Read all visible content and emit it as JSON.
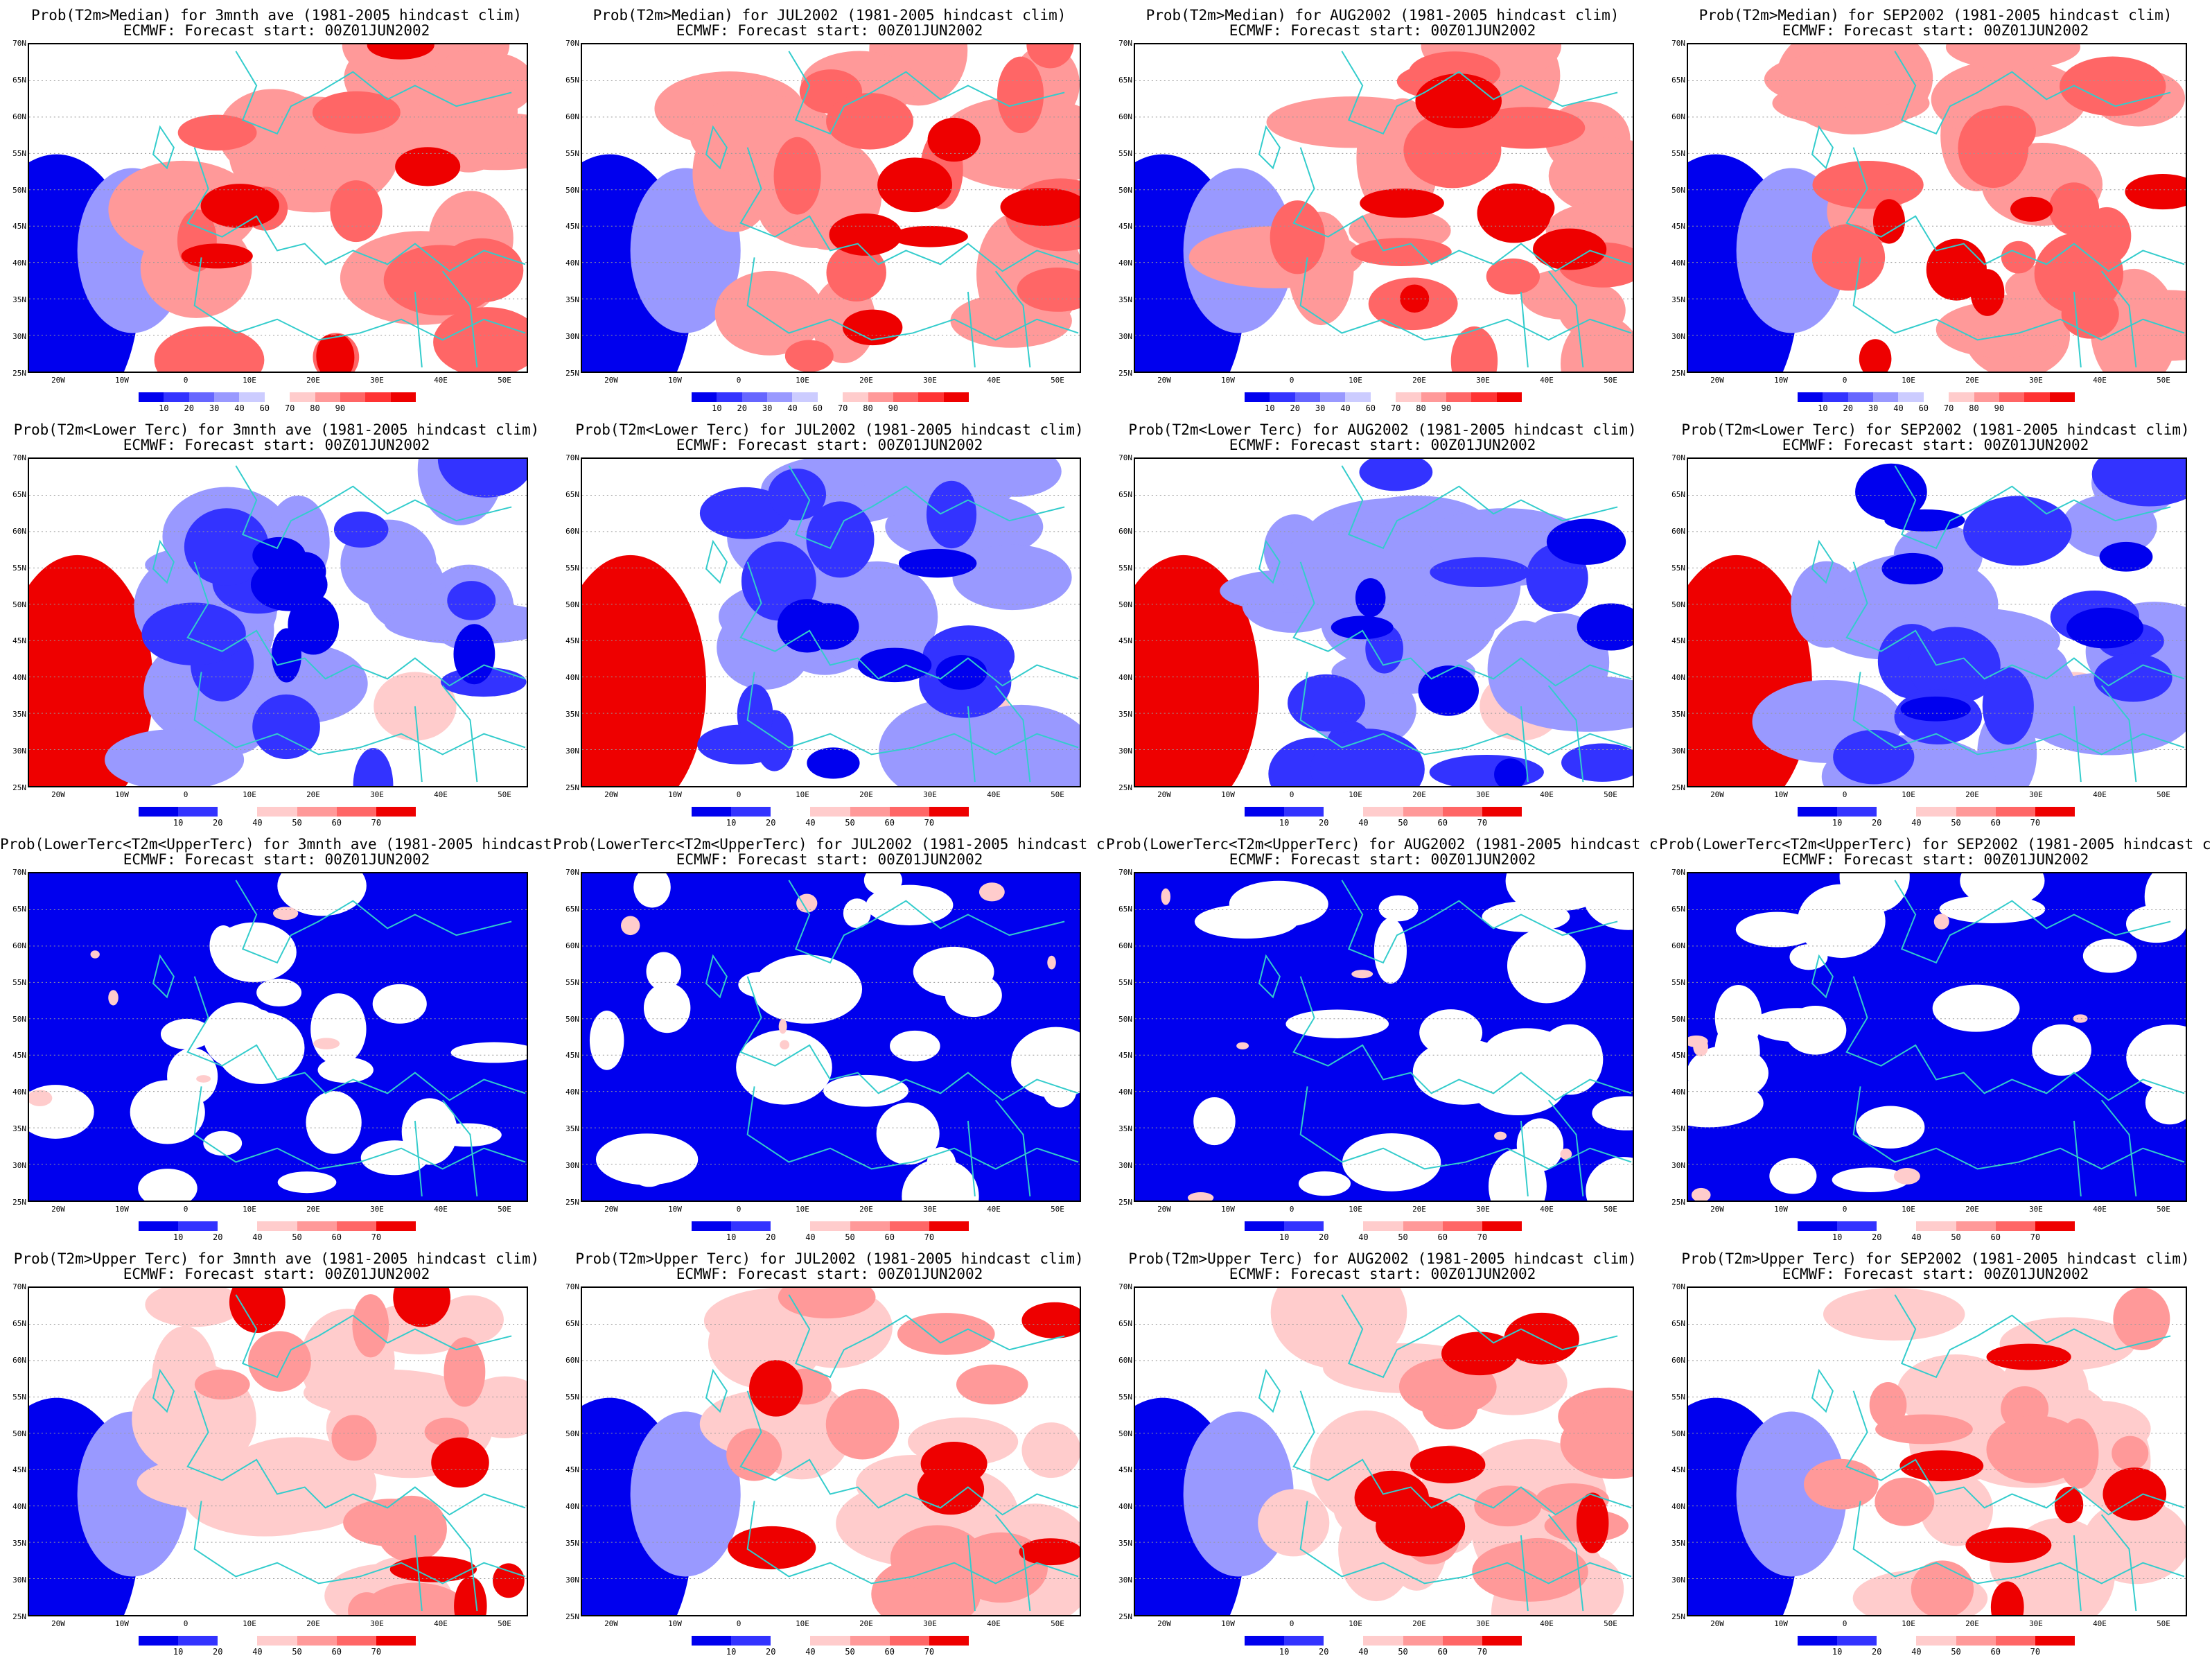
{
  "row_titles": [
    "Prob(T2m>Median)",
    "Prob(T2m<Lower Terc)",
    "Prob(LowerTerc<T2m<UpperTerc)",
    "Prob(T2m>Upper Terc)"
  ],
  "periods": [
    "3mnth ave",
    "JUL2002",
    "AUG2002",
    "SEP2002"
  ],
  "title_line2": "ECMWF: Forecast start: 00Z01JUN2002",
  "title_suffix": "(1981-2005 hindcast clim)",
  "lat_labels": [
    "70N",
    "65N",
    "60N",
    "55N",
    "50N",
    "45N",
    "40N",
    "35N",
    "30N",
    "25N"
  ],
  "lon_labels": [
    "20W",
    "10W",
    "0",
    "10E",
    "20E",
    "30E",
    "40E",
    "50E"
  ],
  "colorbar_median": {
    "labels": [
      "10",
      "20",
      "30",
      "40",
      "60",
      "70",
      "80",
      "90"
    ],
    "colors": [
      "#0000ee",
      "#3333ff",
      "#6666ff",
      "#9999ff",
      "#ccccff",
      "#ffffff",
      "#ffcccc",
      "#ff9999",
      "#ff6666",
      "#ff3333",
      "#ee0000"
    ]
  },
  "colorbar_tercile": {
    "labels": [
      "10",
      "20",
      "40",
      "50",
      "60",
      "70"
    ],
    "colors": [
      "#0000ee",
      "#3333ff",
      "#ffffff",
      "#ffcccc",
      "#ff9999",
      "#ff6666",
      "#ee0000"
    ]
  },
  "colors": {
    "coast": "#33cccc",
    "frame": "#000000"
  },
  "panel_dominant": [
    [
      "red",
      "red",
      "red",
      "red"
    ],
    [
      "blue",
      "blue",
      "blue",
      "blue"
    ],
    [
      "blue",
      "blue",
      "blue",
      "blue"
    ],
    [
      "red",
      "red",
      "red",
      "red"
    ]
  ]
}
